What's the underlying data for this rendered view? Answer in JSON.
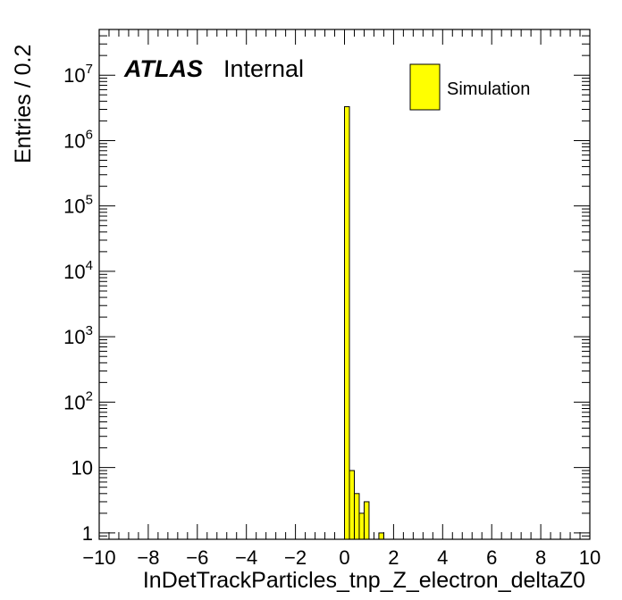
{
  "chart_data": {
    "type": "bar",
    "label_main": "ATLAS",
    "label_sub": "Internal",
    "xlabel": "InDetTrackParticles_tnp_Z_electron_deltaZ0",
    "ylabel": "Entries / 0.2",
    "xlim": [
      -10,
      10
    ],
    "ylim": [
      0.8,
      50000000
    ],
    "y_scale": "log",
    "bin_width": 0.2,
    "x_ticks": [
      -10,
      -8,
      -6,
      -4,
      -2,
      0,
      2,
      4,
      6,
      8,
      10
    ],
    "x_tick_labels": [
      "−10",
      "−8",
      "−6",
      "−4",
      "−2",
      "0",
      "2",
      "4",
      "6",
      "8",
      "10"
    ],
    "y_ticks": [
      {
        "value": 1,
        "base": "1",
        "exp": ""
      },
      {
        "value": 10,
        "base": "10",
        "exp": ""
      },
      {
        "value": 100,
        "base": "10",
        "exp": "2"
      },
      {
        "value": 1000,
        "base": "10",
        "exp": "3"
      },
      {
        "value": 10000,
        "base": "10",
        "exp": "4"
      },
      {
        "value": 100000,
        "base": "10",
        "exp": "5"
      },
      {
        "value": 1000000,
        "base": "10",
        "exp": "6"
      },
      {
        "value": 10000000,
        "base": "10",
        "exp": "7"
      }
    ],
    "grid": false,
    "legend_position": "top-right",
    "series": [
      {
        "name": "Simulation",
        "color": "#ffff00",
        "bins": [
          {
            "x_low": 0.0,
            "value": 3300000
          },
          {
            "x_low": 0.2,
            "value": 9
          },
          {
            "x_low": 0.4,
            "value": 4
          },
          {
            "x_low": 0.6,
            "value": 2
          },
          {
            "x_low": 0.8,
            "value": 3
          },
          {
            "x_low": 1.0,
            "value": 0
          },
          {
            "x_low": 1.2,
            "value": 0
          },
          {
            "x_low": 1.4,
            "value": 1
          }
        ]
      }
    ]
  }
}
